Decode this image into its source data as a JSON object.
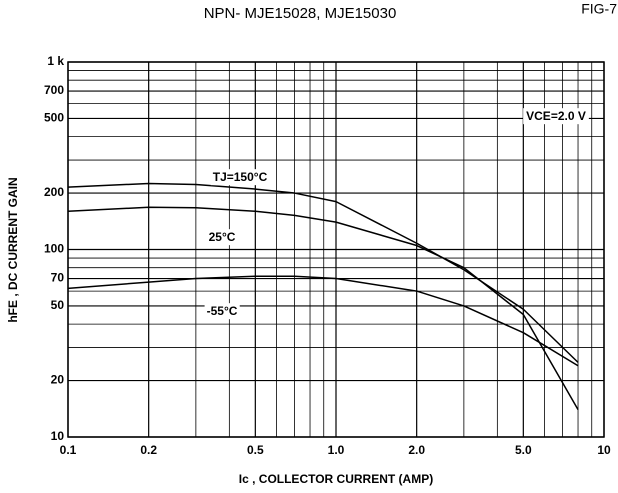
{
  "chart_data": {
    "type": "line",
    "title": "NPN- MJE15028, MJE15030",
    "figure_label": "FIG-7",
    "x_label": "Ic , COLLECTOR CURRENT (AMP)",
    "y_label": "hFE , DC CURRENT GAIN",
    "annotation": "VCE=2.0 V",
    "log_x": true,
    "log_y": true,
    "grid": true,
    "xlim": [
      0.1,
      10
    ],
    "ylim": [
      10,
      1000
    ],
    "xticks": [
      0.1,
      0.2,
      0.5,
      {
        "value": 1,
        "label": "1.0"
      },
      {
        "value": 2,
        "label": "2.0"
      },
      {
        "value": 5,
        "label": "5.0"
      },
      10
    ],
    "yticks": [
      10,
      20,
      50,
      70,
      100,
      200,
      500,
      700,
      {
        "value": 1000,
        "label": "1 k"
      }
    ],
    "xminor": [
      0.3,
      0.4,
      0.6,
      0.7,
      0.8,
      0.9,
      3,
      4,
      6,
      7,
      8,
      9
    ],
    "yminor": [
      30,
      40,
      60,
      80,
      90,
      300,
      400,
      600,
      800,
      900
    ],
    "x": [
      0.1,
      0.2,
      0.3,
      0.5,
      0.7,
      1,
      2,
      3,
      5,
      8
    ],
    "series": [
      {
        "name": "TJ=150°C",
        "color": "#000000",
        "values": [
          215,
          225,
          222,
          210,
          200,
          180,
          108,
          78,
          48,
          25
        ]
      },
      {
        "name": "25°C",
        "color": "#000000",
        "values": [
          160,
          168,
          167,
          160,
          152,
          140,
          105,
          80,
          45,
          14
        ]
      },
      {
        "name": "-55°C",
        "color": "#000000",
        "values": [
          62,
          67,
          70,
          72,
          72,
          70,
          60,
          50,
          36,
          24
        ]
      }
    ]
  }
}
